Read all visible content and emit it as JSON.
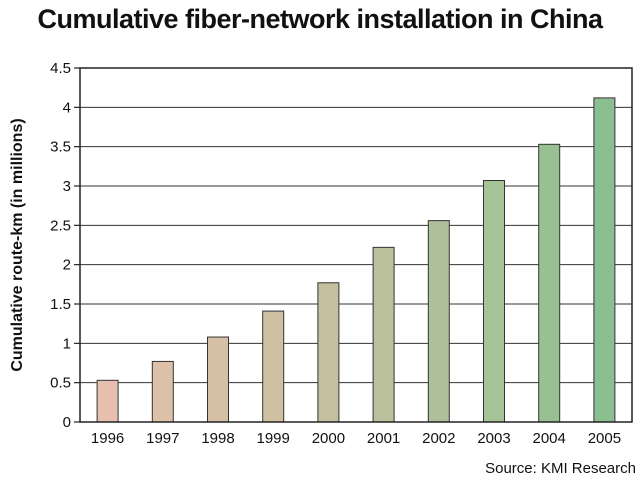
{
  "chart_data": {
    "type": "bar",
    "title": "Cumulative fiber-network installation in China",
    "ylabel": "Cumulative route-km (in millions)",
    "xlabel": "",
    "categories": [
      "1996",
      "1997",
      "1998",
      "1999",
      "2000",
      "2001",
      "2002",
      "2003",
      "2004",
      "2005"
    ],
    "values": [
      0.53,
      0.77,
      1.08,
      1.41,
      1.77,
      2.22,
      2.56,
      3.07,
      3.53,
      4.12
    ],
    "ylim": [
      0,
      4.5
    ],
    "yticks": [
      "0",
      "0.5",
      "1",
      "1.5",
      "2",
      "2.5",
      "3",
      "3.5",
      "4",
      "4.5"
    ],
    "grid": true,
    "bar_colors": [
      "#e6c0ad",
      "#dcc0a8",
      "#d6c0a5",
      "#cfc0a2",
      "#c4c09f",
      "#b8c09c",
      "#aec09a",
      "#a6c297",
      "#98c093",
      "#8cbf90"
    ],
    "source": "Source: KMI Research"
  }
}
